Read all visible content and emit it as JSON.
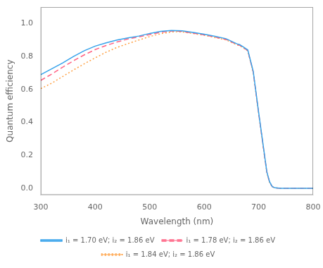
{
  "chart_data": {
    "type": "line",
    "xlabel": "Wavelength (nm)",
    "ylabel": "Quantum efficiency",
    "xlim": [
      300,
      800
    ],
    "ylim": [
      -0.04,
      1.1
    ],
    "xticks": [
      300,
      400,
      500,
      600,
      700,
      800
    ],
    "yticks": [
      {
        "value": 0.0,
        "label": "0.0"
      },
      0.2,
      0.4,
      0.6,
      0.8,
      {
        "value": 1.0,
        "label": "1.0"
      }
    ],
    "grid": false,
    "legend": "bottom",
    "x": [
      300,
      320,
      340,
      360,
      380,
      400,
      420,
      440,
      460,
      480,
      500,
      520,
      540,
      550,
      560,
      580,
      600,
      620,
      640,
      660,
      665,
      670,
      680,
      690,
      700,
      710,
      715,
      720,
      725,
      730,
      740,
      800
    ],
    "series": [
      {
        "name": "i₁ = 1.70 eV; i₂ = 1.86 eV",
        "line_style": "solid",
        "values": [
          0.69,
          0.725,
          0.76,
          0.8,
          0.835,
          0.863,
          0.883,
          0.9,
          0.913,
          0.924,
          0.94,
          0.952,
          0.958,
          0.957,
          0.956,
          0.946,
          0.935,
          0.922,
          0.908,
          0.877,
          0.872,
          0.862,
          0.84,
          0.71,
          0.46,
          0.22,
          0.1,
          0.04,
          0.01,
          0.003,
          0.0,
          0.0
        ]
      },
      {
        "name": "i₁ = 1.78 eV; i₂ = 1.86 eV",
        "line_style": "dashed",
        "values": [
          0.655,
          0.693,
          0.735,
          0.774,
          0.81,
          0.842,
          0.867,
          0.888,
          0.906,
          0.919,
          0.933,
          0.947,
          0.954,
          0.954,
          0.952,
          0.942,
          0.931,
          0.918,
          0.904,
          0.873,
          0.868,
          0.858,
          0.836,
          0.706,
          0.455,
          0.215,
          0.098,
          0.038,
          0.01,
          0.003,
          0.0,
          0.0
        ]
      },
      {
        "name": "i₁ = 1.84 eV; i₂ = 1.86 eV",
        "line_style": "dotted",
        "values": [
          0.605,
          0.638,
          0.678,
          0.718,
          0.756,
          0.792,
          0.826,
          0.855,
          0.878,
          0.9,
          0.921,
          0.938,
          0.949,
          0.95,
          0.949,
          0.939,
          0.929,
          0.915,
          0.901,
          0.871,
          0.866,
          0.856,
          0.834,
          0.703,
          0.452,
          0.212,
          0.096,
          0.036,
          0.009,
          0.003,
          0.0,
          0.0
        ]
      }
    ]
  }
}
